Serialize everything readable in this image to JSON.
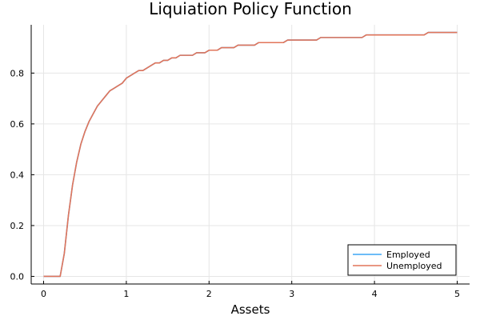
{
  "chart_data": {
    "type": "line",
    "title": "Liquiation Policy Function",
    "xlabel": "Assets",
    "ylabel": "",
    "xlim": [
      -0.15,
      5.15
    ],
    "ylim": [
      -0.03,
      0.99
    ],
    "xticks": [
      0,
      1,
      2,
      3,
      4,
      5
    ],
    "xtick_labels": [
      "0",
      "1",
      "2",
      "3",
      "4",
      "5"
    ],
    "yticks": [
      0.0,
      0.2,
      0.4,
      0.6,
      0.8
    ],
    "ytick_labels": [
      "0.0",
      "0.2",
      "0.4",
      "0.6",
      "0.8"
    ],
    "grid": true,
    "legend_position": "bottom-right",
    "series": [
      {
        "name": "Employed",
        "color": "#3da5f5",
        "x": [
          0,
          0.2,
          0.25,
          0.3,
          0.35,
          0.4,
          0.45,
          0.5,
          0.55,
          0.6,
          0.65,
          0.7,
          0.75,
          0.8,
          0.85,
          0.9,
          0.95,
          1.0,
          1.1,
          1.15,
          1.2,
          1.3,
          1.35,
          1.4,
          1.45,
          1.5,
          1.55,
          1.6,
          1.65,
          1.7,
          1.8,
          1.85,
          1.95,
          2.0,
          2.1,
          2.15,
          2.3,
          2.35,
          2.55,
          2.6,
          2.9,
          2.95,
          3.3,
          3.35,
          3.85,
          3.9,
          4.6,
          4.65,
          5.0
        ],
        "y": [
          0.0,
          0.0,
          0.09,
          0.24,
          0.36,
          0.45,
          0.52,
          0.57,
          0.61,
          0.64,
          0.67,
          0.69,
          0.71,
          0.73,
          0.74,
          0.75,
          0.76,
          0.78,
          0.8,
          0.81,
          0.81,
          0.83,
          0.84,
          0.84,
          0.85,
          0.85,
          0.86,
          0.86,
          0.87,
          0.87,
          0.87,
          0.88,
          0.88,
          0.89,
          0.89,
          0.9,
          0.9,
          0.91,
          0.91,
          0.92,
          0.92,
          0.93,
          0.93,
          0.94,
          0.94,
          0.95,
          0.95,
          0.96,
          0.96
        ]
      },
      {
        "name": "Unemployed",
        "color": "#e2755a",
        "x": [
          0,
          0.2,
          0.25,
          0.3,
          0.35,
          0.4,
          0.45,
          0.5,
          0.55,
          0.6,
          0.65,
          0.7,
          0.75,
          0.8,
          0.85,
          0.9,
          0.95,
          1.0,
          1.1,
          1.15,
          1.2,
          1.3,
          1.35,
          1.4,
          1.45,
          1.5,
          1.55,
          1.6,
          1.65,
          1.7,
          1.8,
          1.85,
          1.95,
          2.0,
          2.1,
          2.15,
          2.3,
          2.35,
          2.55,
          2.6,
          2.9,
          2.95,
          3.3,
          3.35,
          3.85,
          3.9,
          4.6,
          4.65,
          5.0
        ],
        "y": [
          0.0,
          0.0,
          0.09,
          0.24,
          0.36,
          0.45,
          0.52,
          0.57,
          0.61,
          0.64,
          0.67,
          0.69,
          0.71,
          0.73,
          0.74,
          0.75,
          0.76,
          0.78,
          0.8,
          0.81,
          0.81,
          0.83,
          0.84,
          0.84,
          0.85,
          0.85,
          0.86,
          0.86,
          0.87,
          0.87,
          0.87,
          0.88,
          0.88,
          0.89,
          0.89,
          0.9,
          0.9,
          0.91,
          0.91,
          0.92,
          0.92,
          0.93,
          0.93,
          0.94,
          0.94,
          0.95,
          0.95,
          0.96,
          0.96
        ]
      }
    ]
  }
}
